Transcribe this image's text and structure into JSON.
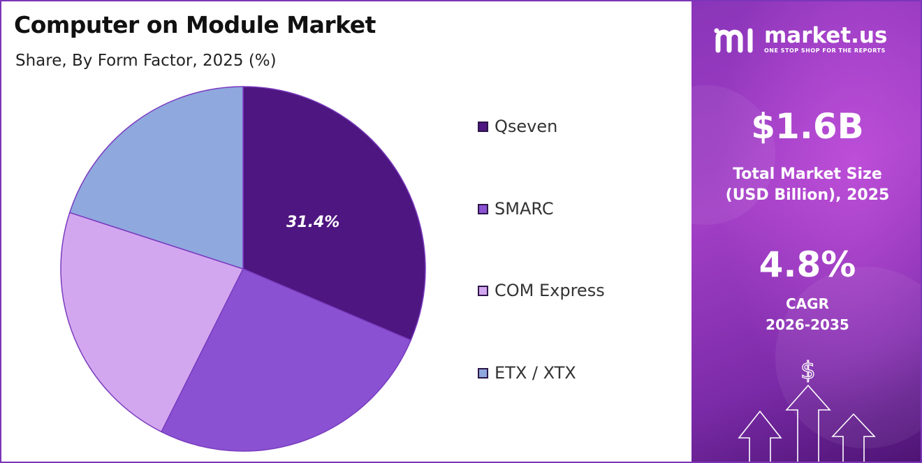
{
  "title": "Computer on Module Market",
  "subtitle": "Share, By Form Factor, 2025 (%)",
  "chart_data": {
    "type": "pie",
    "categories": [
      "Qseven",
      "SMARC",
      "COM Express",
      "ETX / XTX"
    ],
    "values": [
      31.4,
      26.0,
      22.6,
      20.0
    ],
    "colors": [
      "#4e1680",
      "#8a52d2",
      "#d3a7ef",
      "#8fa8de"
    ],
    "data_labels": [
      "31.4%",
      "",
      "",
      ""
    ],
    "legend_position": "right"
  },
  "panel": {
    "brand_name": "market.us",
    "brand_tagline": "ONE STOP SHOP FOR THE REPORTS",
    "market_size": "$1.6B",
    "market_size_label_line1": "Total Market Size",
    "market_size_label_line2": "(USD Billion), 2025",
    "cagr_value": "4.8%",
    "cagr_label": "CAGR",
    "cagr_period": "2026-2035",
    "currency_symbol": "$",
    "icons": [
      "market-us-logo-icon",
      "dollar-icon",
      "up-arrow-icon"
    ]
  }
}
